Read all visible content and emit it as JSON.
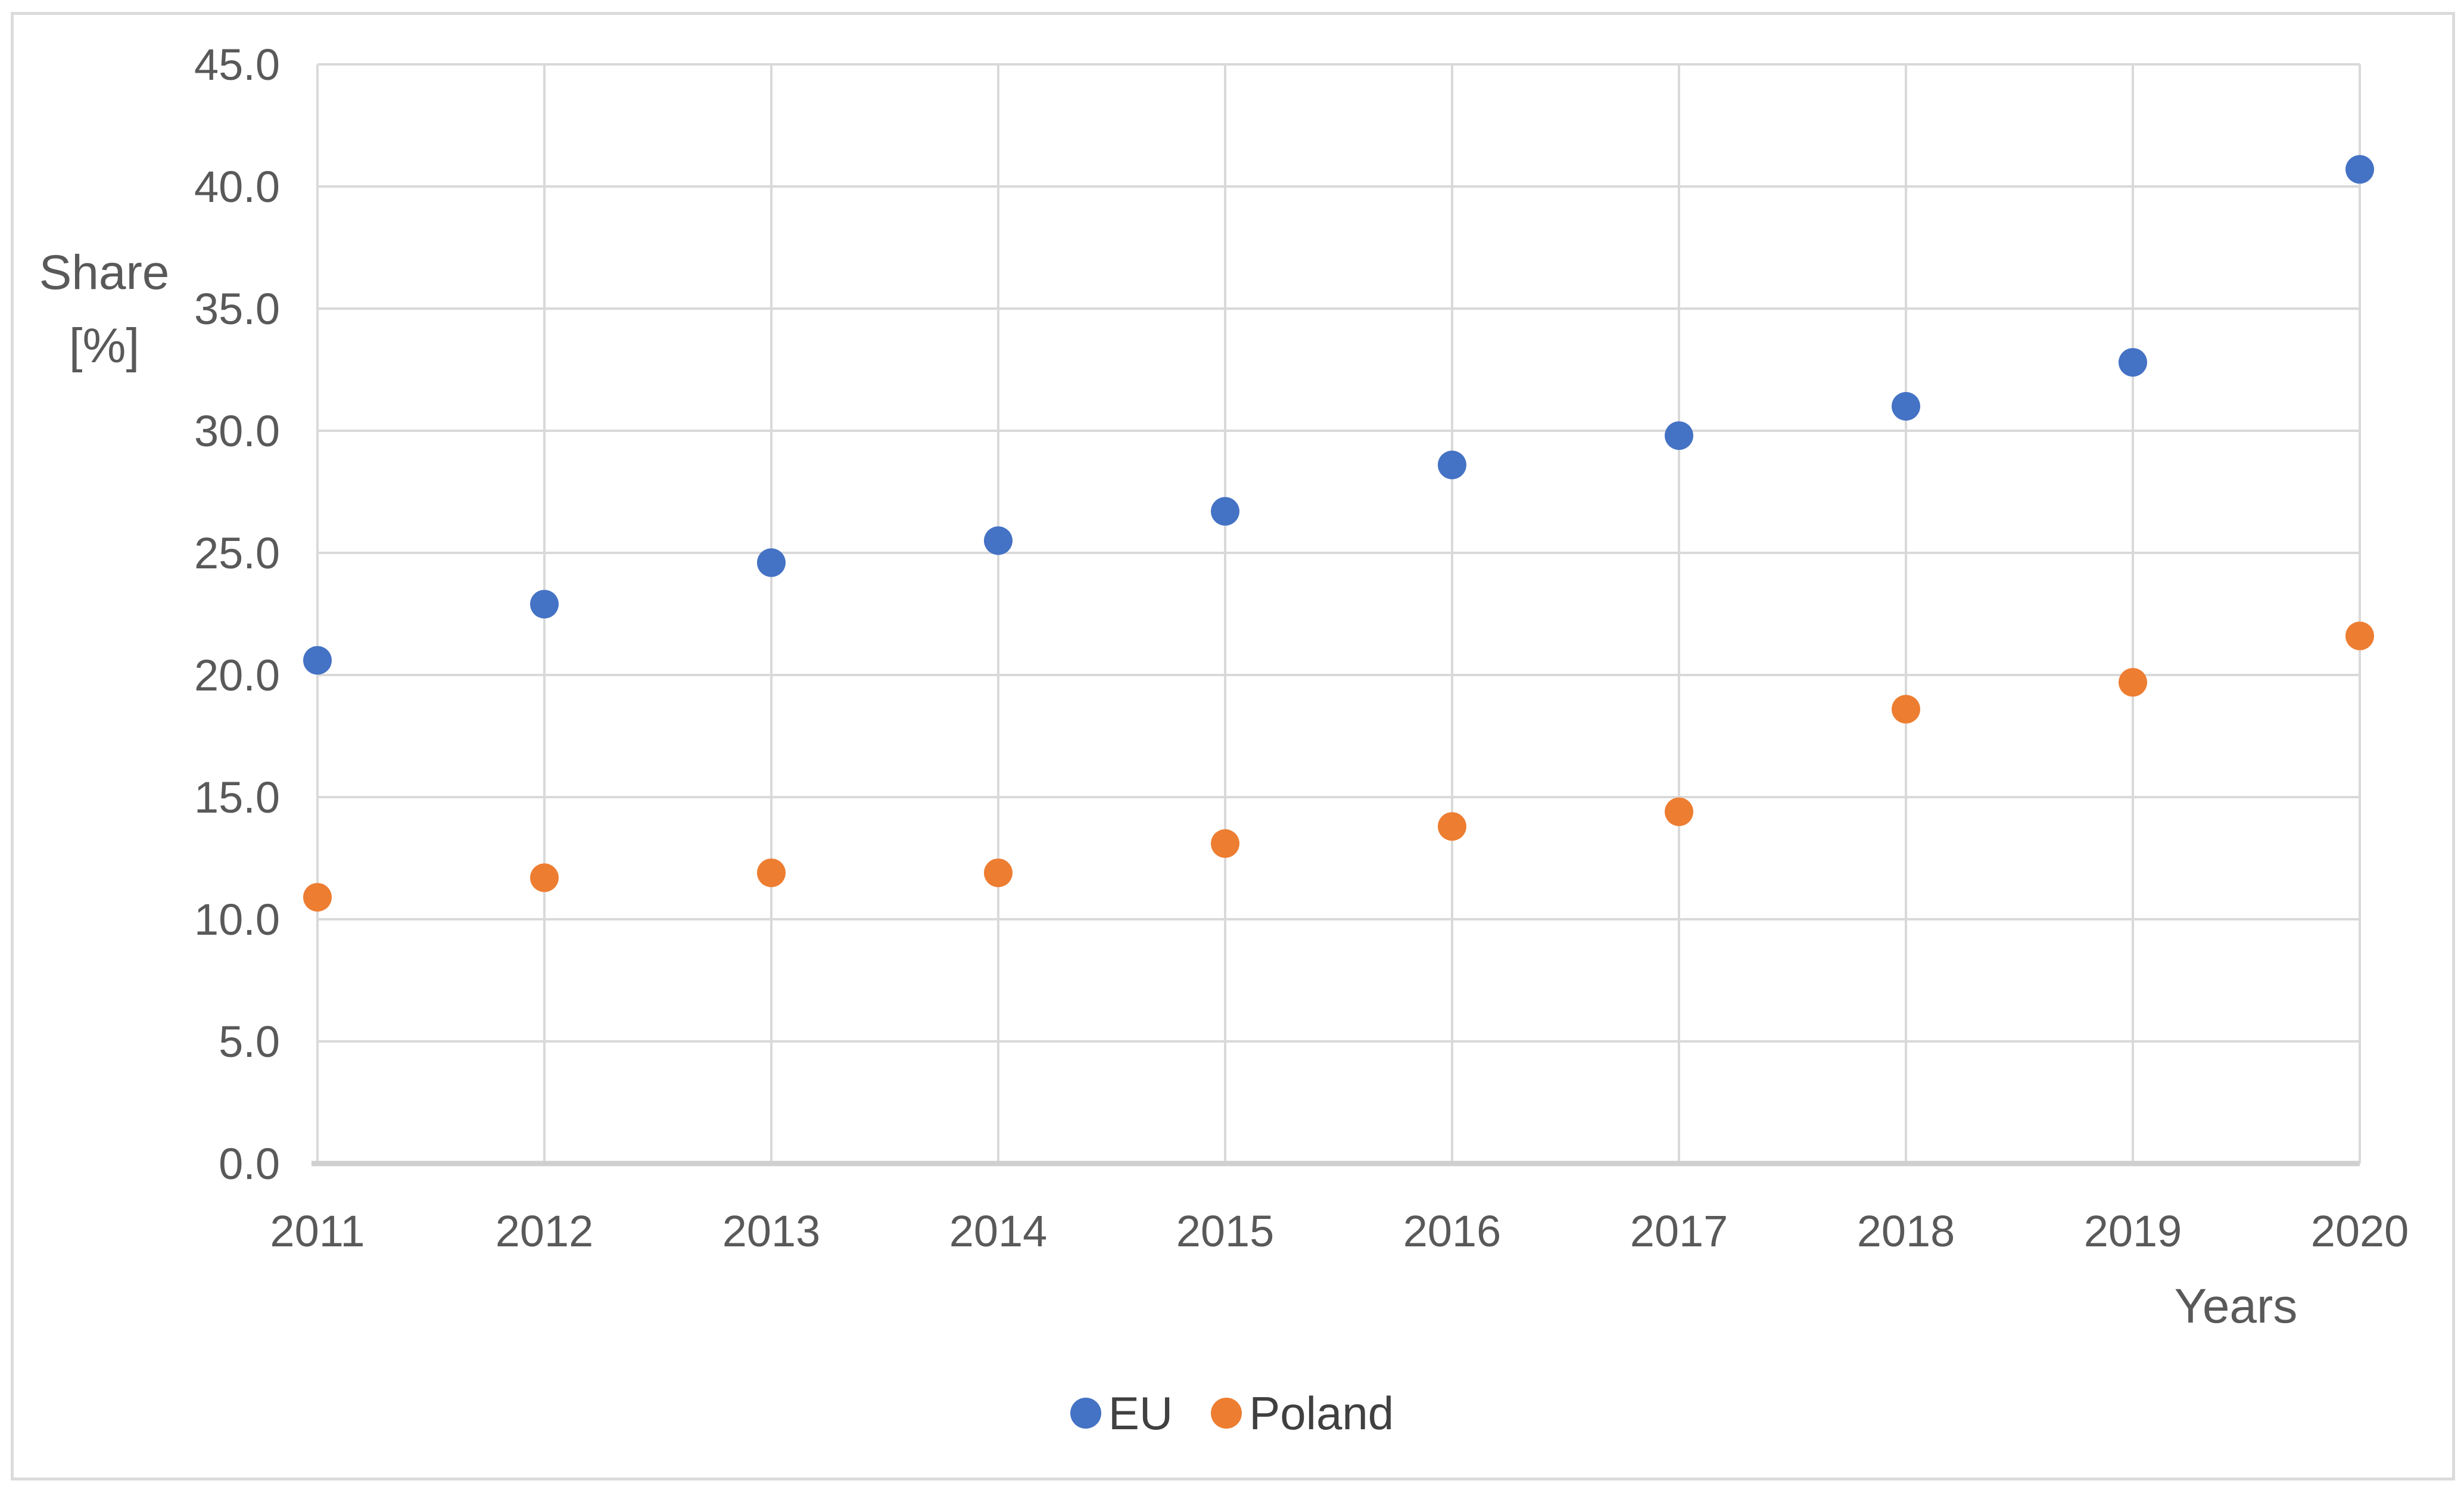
{
  "figure": {
    "y_axis_title_line1": "Share",
    "y_axis_title_line2": "[%]",
    "x_axis_title": "Years"
  },
  "legend": {
    "items": [
      {
        "label": "EU",
        "color": "#4472C4"
      },
      {
        "label": "Poland",
        "color": "#ED7D31"
      }
    ]
  },
  "chart_data": {
    "type": "scatter",
    "title": "",
    "xlabel": "Years",
    "ylabel": "Share [%]",
    "x": [
      2011,
      2012,
      2013,
      2014,
      2015,
      2016,
      2017,
      2018,
      2019,
      2020
    ],
    "x_tick_labels": [
      "2011",
      "2012",
      "2013",
      "2014",
      "2015",
      "2016",
      "2017",
      "2018",
      "2019",
      "2020"
    ],
    "series": [
      {
        "name": "EU",
        "color": "#4472C4",
        "values": [
          20.6,
          22.9,
          24.6,
          25.5,
          26.7,
          28.6,
          29.8,
          31.0,
          32.8,
          40.7
        ]
      },
      {
        "name": "Poland",
        "color": "#ED7D31",
        "values": [
          10.9,
          11.7,
          11.9,
          11.9,
          13.1,
          13.8,
          14.4,
          18.6,
          19.7,
          21.6
        ]
      }
    ],
    "ylim": [
      0,
      45
    ],
    "ytick_step": 5,
    "ytick_labels": [
      "0.0",
      "5.0",
      "10.0",
      "15.0",
      "20.0",
      "25.0",
      "30.0",
      "35.0",
      "40.0",
      "45.0"
    ],
    "grid": true,
    "legend_position": "bottom"
  },
  "style": {
    "gridline_color": "#D9D9D9",
    "axis_line_color": "#CFCFCF",
    "tick_text_color": "#595959",
    "frame_color": "#DBDBDB",
    "background": "#FFFFFF"
  }
}
